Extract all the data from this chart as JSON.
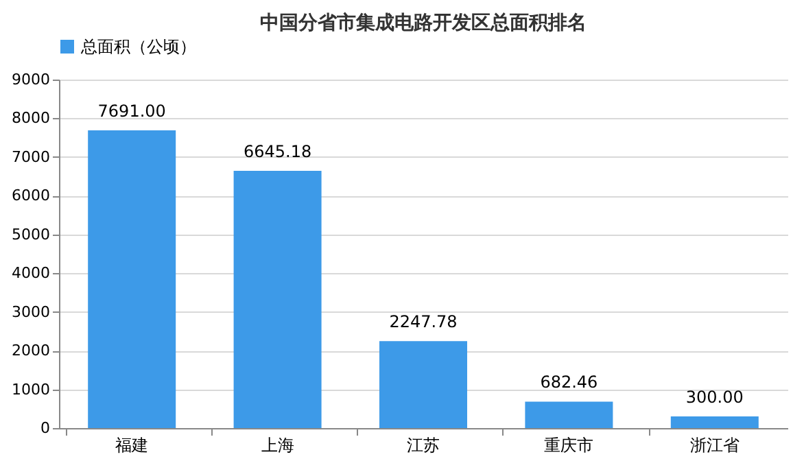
{
  "chart_data": {
    "type": "bar",
    "title": "中国分省市集成电路开发区总面积排名",
    "categories": [
      "福建",
      "上海",
      "江苏",
      "重庆市",
      "浙江省"
    ],
    "series": [
      {
        "name": "总面积（公顷）",
        "color": "#3d9ae8",
        "values": [
          7691.0,
          6645.18,
          2247.78,
          682.46,
          300.0
        ],
        "value_labels": [
          "7691.00",
          "6645.18",
          "2247.78",
          "682.46",
          "300.00"
        ]
      }
    ],
    "ylim": [
      0,
      9000
    ],
    "yticks": [
      0,
      1000,
      2000,
      3000,
      4000,
      5000,
      6000,
      7000,
      8000,
      9000
    ],
    "grid": "y",
    "legend": "top"
  }
}
